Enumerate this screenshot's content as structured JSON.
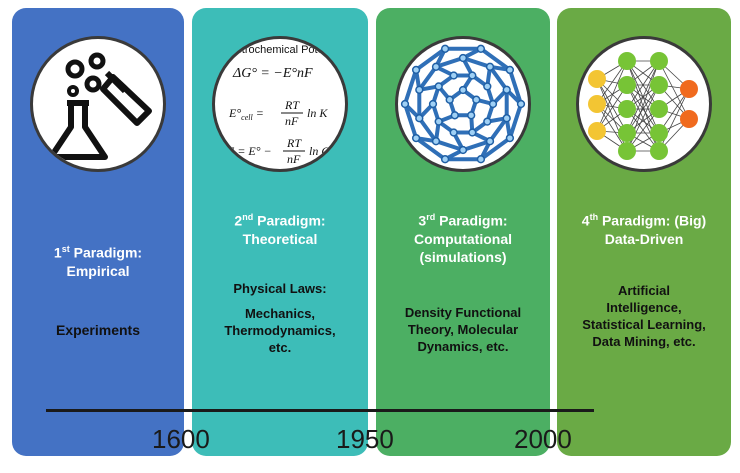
{
  "panels": [
    {
      "heading_ordinal": "1",
      "heading_sup": "st",
      "heading_rest": " Paradigm:",
      "heading_line2": "Empirical",
      "body_lines": [
        "Experiments"
      ],
      "icon": "flask-test-tube-icon",
      "color": "#4472c4"
    },
    {
      "heading_ordinal": "2",
      "heading_sup": "nd",
      "heading_rest": " Paradigm:",
      "heading_line2": "Theoretical",
      "body_lines": [
        "Physical Laws:",
        "",
        "Mechanics,",
        "Thermodynamics,",
        "etc."
      ],
      "icon": "electrochemical-equations-icon",
      "formula_title": "ctrochemical Pote",
      "color": "#3dbdb8"
    },
    {
      "heading_ordinal": "3",
      "heading_sup": "rd",
      "heading_rest": " Paradigm:",
      "heading_line2": "Computational",
      "heading_line3": "(simulations)",
      "body_lines": [
        "Density Functional",
        "Theory, Molecular",
        "Dynamics, etc."
      ],
      "icon": "fullerene-molecule-icon",
      "color": "#4caf63"
    },
    {
      "heading_ordinal": "4",
      "heading_sup": "th",
      "heading_rest": " Paradigm: (Big)",
      "heading_line2": "Data-Driven",
      "body_lines": [
        "Artificial",
        "Intelligence,",
        "Statistical Learning,",
        "Data Mining, etc."
      ],
      "icon": "neural-network-icon",
      "color": "#6aaa45"
    }
  ],
  "timeline": {
    "years": [
      "1600",
      "1950",
      "2000"
    ]
  }
}
